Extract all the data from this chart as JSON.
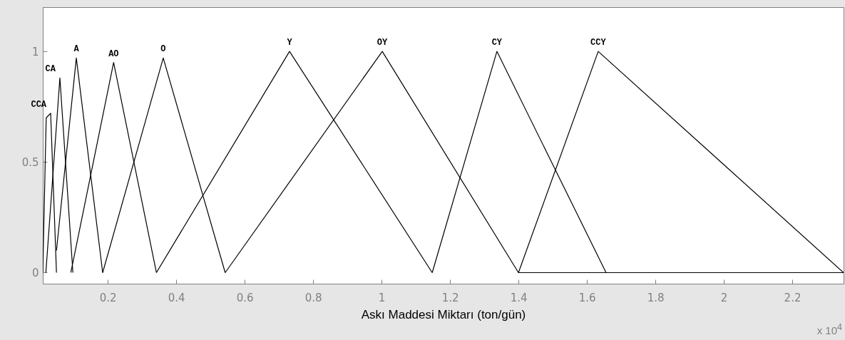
{
  "chart_data": {
    "type": "line",
    "xlabel": "Askı Maddesi Miktarı (ton/gün)",
    "xlim": [
      0.01,
      2.35
    ],
    "ylim": [
      -0.05,
      1.2
    ],
    "xticks": [
      0.2,
      0.4,
      0.6,
      0.8,
      1,
      1.2,
      1.4,
      1.6,
      1.8,
      2,
      2.2
    ],
    "yticks": [
      0,
      0.5,
      1
    ],
    "grid": false,
    "marker": "none",
    "line_style": "solid",
    "series": [
      {
        "name": "CCA",
        "color": "#000000",
        "x": [
          0.01,
          0.02,
          0.033,
          0.05
        ],
        "values": [
          0,
          0.7,
          0.72,
          0
        ]
      },
      {
        "name": "CA",
        "color": "#000000",
        "x": [
          0.019,
          0.06,
          0.098
        ],
        "values": [
          0,
          0.88,
          0
        ]
      },
      {
        "name": "A",
        "color": "#000000",
        "x": [
          0.05,
          0.108,
          0.185
        ],
        "values": [
          0.1,
          0.97,
          0
        ]
      },
      {
        "name": "AO",
        "color": "#000000",
        "x": [
          0.092,
          0.217,
          0.342
        ],
        "values": [
          0,
          0.95,
          0
        ]
      },
      {
        "name": "O",
        "color": "#000000",
        "x": [
          0.185,
          0.362,
          0.543
        ],
        "values": [
          0,
          0.97,
          0
        ]
      },
      {
        "name": "Y",
        "color": "#000000",
        "x": [
          0.342,
          0.731,
          1.148
        ],
        "values": [
          0,
          1,
          0
        ]
      },
      {
        "name": "OY",
        "color": "#000000",
        "x": [
          0.543,
          1.002,
          1.4,
          2.35
        ],
        "values": [
          0,
          1,
          0,
          0
        ]
      },
      {
        "name": "CY",
        "color": "#000000",
        "x": [
          1.148,
          1.337,
          1.656
        ],
        "values": [
          0,
          1,
          0
        ]
      },
      {
        "name": "CCY",
        "color": "#000000",
        "x": [
          1.4,
          1.633,
          2.35
        ],
        "values": [
          0,
          1,
          0
        ]
      }
    ],
    "annotations": [
      "x 10$^{4}$"
    ]
  }
}
